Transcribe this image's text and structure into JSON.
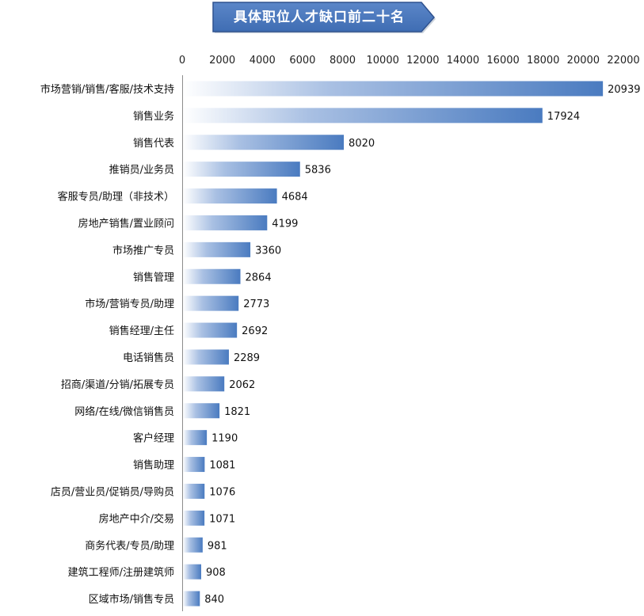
{
  "chart_data": {
    "type": "bar",
    "orientation": "horizontal",
    "title": "具体职位人才缺口前二十名",
    "xlim": [
      0,
      22000
    ],
    "ticks": [
      0,
      2000,
      4000,
      6000,
      8000,
      10000,
      12000,
      14000,
      16000,
      18000,
      20000,
      22000
    ],
    "tick_labels": [
      "0",
      "2000",
      "4000",
      "6000",
      "8000",
      "10000",
      "12000",
      "14000",
      "16000",
      "18000",
      "20000",
      "22000"
    ],
    "categories": [
      "市场营销/销售/客服/技术支持",
      "销售业务",
      "销售代表",
      "推销员/业务员",
      "客服专员/助理（非技术）",
      "房地产销售/置业顾问",
      "市场推广专员",
      "销售管理",
      "市场/营销专员/助理",
      "销售经理/主任",
      "电话销售员",
      "招商/渠道/分销/拓展专员",
      "网络/在线/微信销售员",
      "客户经理",
      "销售助理",
      "店员/营业员/促销员/导购员",
      "房地产中介/交易",
      "商务代表/专员/助理",
      "建筑工程师/注册建筑师",
      "区域市场/销售专员"
    ],
    "values": [
      20939,
      17924,
      8020,
      5836,
      4684,
      4199,
      3360,
      2864,
      2773,
      2692,
      2289,
      2062,
      1821,
      1190,
      1081,
      1076,
      1071,
      981,
      908,
      840
    ],
    "data_labels": [
      "20939",
      "17924",
      "8020",
      "5836",
      "4684",
      "4199",
      "3360",
      "2864",
      "2773",
      "2692",
      "2289",
      "2062",
      "1821",
      "1190",
      "1081",
      "1076",
      "1071",
      "981",
      "908",
      "840"
    ],
    "x_axis_position": "top",
    "grid": false,
    "legend": "none",
    "colors": {
      "bar_start": "#ffffff",
      "bar_end": "#4a7bc0",
      "banner": "#4472b8",
      "banner_border": "#2f528f"
    }
  }
}
